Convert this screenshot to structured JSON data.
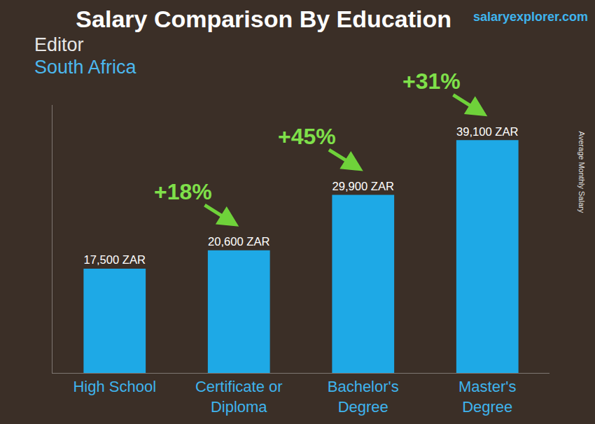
{
  "chart_data": {
    "type": "bar",
    "title": "Salary Comparison By Education",
    "subtitle": [
      "Editor",
      "South Africa"
    ],
    "source": "salaryexplorer.com",
    "ylabel": "Average Monthly Salary",
    "categories": [
      "High School",
      "Certificate or\nDiploma",
      "Bachelor's\nDegree",
      "Master's\nDegree"
    ],
    "values": [
      17500,
      20600,
      29900,
      39100
    ],
    "value_labels": [
      "17,500 ZAR",
      "20,600 ZAR",
      "29,900 ZAR",
      "39,100 ZAR"
    ],
    "annotations": [
      "+18%",
      "+45%",
      "+31%"
    ],
    "color": "#1ea9e6",
    "ylim": [
      0,
      45000
    ],
    "grid": false,
    "data_labels": true,
    "tick_labels": "x"
  }
}
